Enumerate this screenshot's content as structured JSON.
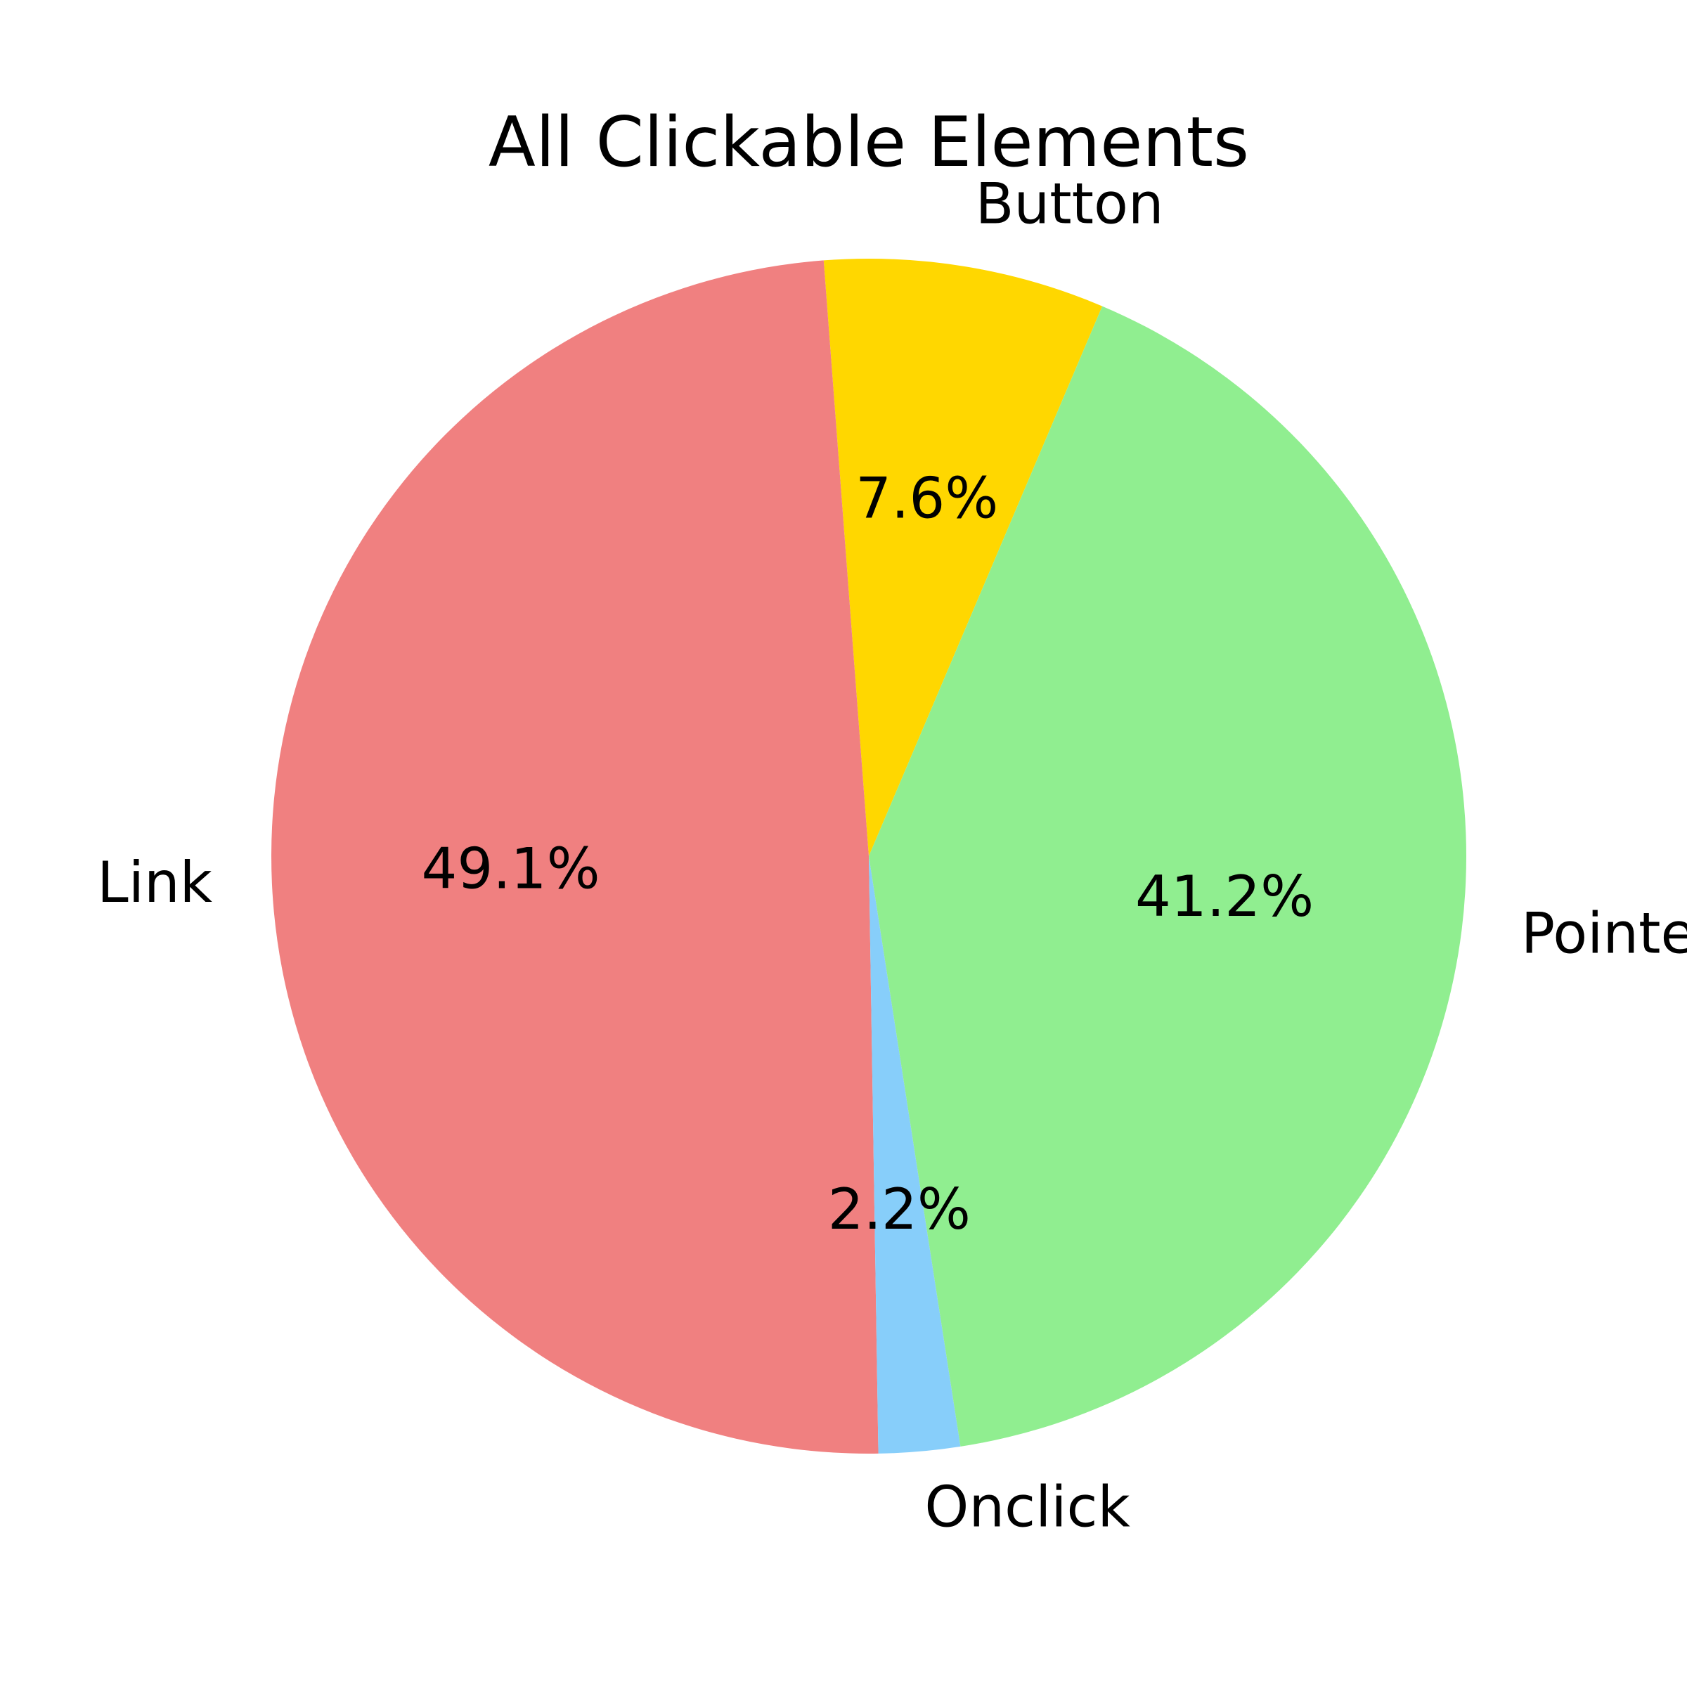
{
  "chart_data": {
    "type": "pie",
    "title": "All Clickable Elements",
    "categories": [
      "Button",
      "Link",
      "Onclick",
      "Pointer"
    ],
    "values": [
      7.6,
      49.1,
      2.2,
      41.2
    ],
    "labels": [
      "7.6%",
      "49.1%",
      "2.2%",
      "41.2%"
    ],
    "colors": [
      "#ffd700",
      "#f08080",
      "#87cefa",
      "#90ee90"
    ],
    "start_angle_deg": 67,
    "direction": "counterclockwise",
    "legend": "none"
  }
}
